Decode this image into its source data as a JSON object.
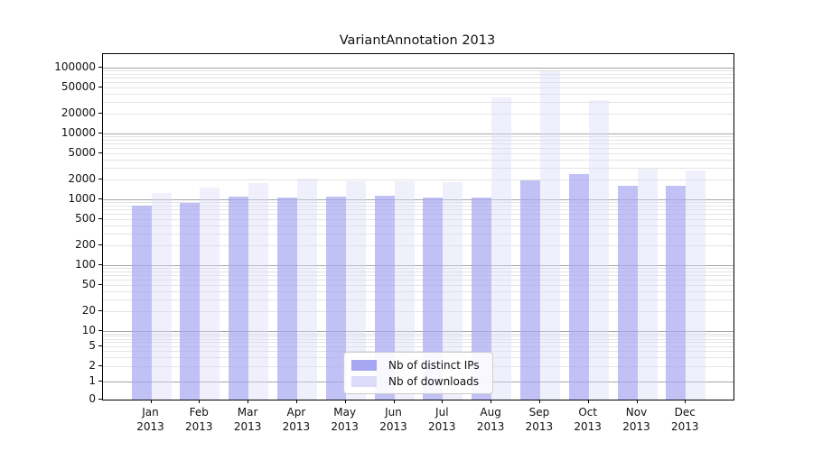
{
  "chart_data": {
    "type": "bar",
    "title": "VariantAnnotation 2013",
    "categories": [
      "Jan",
      "Feb",
      "Mar",
      "Apr",
      "May",
      "Jun",
      "Jul",
      "Aug",
      "Sep",
      "Oct",
      "Nov",
      "Dec"
    ],
    "x_tick_year": "2013",
    "series": [
      {
        "name": "Nb of distinct IPs",
        "color": "#a6a6f2",
        "values": [
          800,
          890,
          1110,
          1070,
          1090,
          1130,
          1070,
          1070,
          1970,
          2430,
          1590,
          1630
        ]
      },
      {
        "name": "Nb of downloads",
        "color": "#dcdcf9",
        "values": [
          1260,
          1500,
          1750,
          2050,
          1910,
          1900,
          1810,
          35000,
          88000,
          32000,
          2900,
          2780
        ]
      }
    ],
    "y_ticks": [
      0,
      1,
      2,
      5,
      10,
      20,
      50,
      100,
      200,
      500,
      1000,
      2000,
      5000,
      10000,
      20000,
      50000,
      100000
    ],
    "ylim": [
      0,
      160000
    ],
    "yscale": "log",
    "grid": true,
    "legend_position": "bottom-center",
    "xlabel": "",
    "ylabel": ""
  },
  "colors": {
    "major_grid": "#a6a6a6",
    "minor_grid": "#e4e4e4",
    "axis": "#000000"
  }
}
